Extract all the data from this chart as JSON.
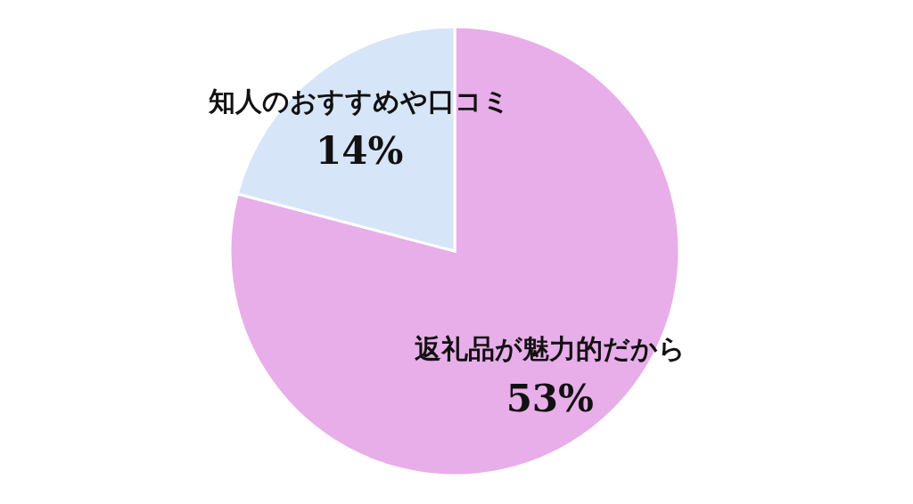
{
  "chart_data": {
    "type": "pie",
    "categories": [
      "返礼品が魅力的だから",
      "知人のおすすめや口コミ"
    ],
    "values": [
      53,
      14
    ],
    "colors": [
      "#e8aee9",
      "#d7e5f8"
    ],
    "value_labels": [
      "53%",
      "14%"
    ]
  }
}
